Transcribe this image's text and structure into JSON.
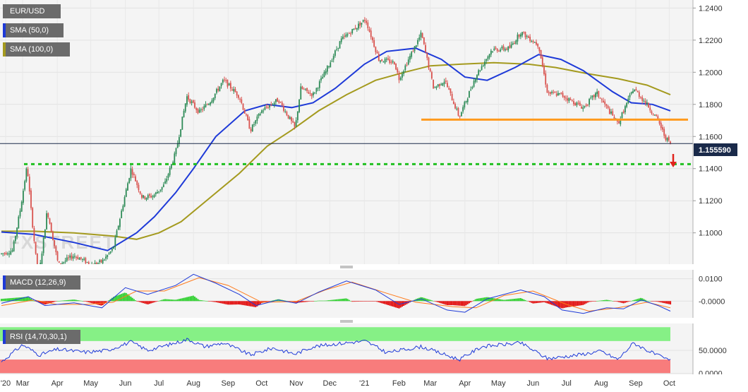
{
  "symbol": "EUR/USD",
  "legends": {
    "sma50": "SMA (50,0)",
    "sma100": "SMA (100,0)",
    "macd": "MACD (12,26,9)",
    "rsi": "RSI (14,70,30,1)"
  },
  "watermark": "FXSTREET",
  "last_price_label": "1.155590",
  "colors": {
    "up": "#2e8b57",
    "down": "#d9534f",
    "sma50": "#1e3ad8",
    "sma100": "#a49a1e",
    "support": "#ff9a1e",
    "target": "#22c022",
    "arrow": "#e0231c",
    "macd_line": "#1e3ad8",
    "signal_line": "#ff7a1a",
    "hist_pos": "#3bd23b",
    "hist_neg": "#e31b1b",
    "rsi_line": "#1e3ad8",
    "overbought": "#86f086",
    "oversold": "#f87c7c"
  },
  "chart_data": [
    {
      "type": "candlestick",
      "title": "EUR/USD",
      "x_ticks": [
        "'20",
        "Mar",
        "Apr",
        "May",
        "Jun",
        "Jul",
        "Aug",
        "Sep",
        "Oct",
        "Nov",
        "Dec",
        "'21",
        "Feb",
        "Mar",
        "Apr",
        "May",
        "Jun",
        "Jul",
        "Aug",
        "Sep",
        "Oct"
      ],
      "y_ticks": [
        "1.1000",
        "1.1200",
        "1.1400",
        "1.1600",
        "1.1800",
        "1.2000",
        "1.2200",
        "1.2400"
      ],
      "ylim": [
        1.0805,
        1.245
      ],
      "last_price": 1.15559,
      "horizontal_support": 1.1705,
      "target_level": 1.1428,
      "close_series": [
        {
          "x": "2020-02-15",
          "y": 1.087
        },
        {
          "x": "2020-02-25",
          "y": 1.089
        },
        {
          "x": "2020-03-03",
          "y": 1.115
        },
        {
          "x": "2020-03-09",
          "y": 1.142
        },
        {
          "x": "2020-03-12",
          "y": 1.118
        },
        {
          "x": "2020-03-19",
          "y": 1.07
        },
        {
          "x": "2020-03-27",
          "y": 1.114
        },
        {
          "x": "2020-04-06",
          "y": 1.08
        },
        {
          "x": "2020-04-20",
          "y": 1.086
        },
        {
          "x": "2020-05-06",
          "y": 1.08
        },
        {
          "x": "2020-05-15",
          "y": 1.082
        },
        {
          "x": "2020-05-25",
          "y": 1.09
        },
        {
          "x": "2020-06-10",
          "y": 1.14
        },
        {
          "x": "2020-06-20",
          "y": 1.122
        },
        {
          "x": "2020-06-30",
          "y": 1.123
        },
        {
          "x": "2020-07-10",
          "y": 1.13
        },
        {
          "x": "2020-07-20",
          "y": 1.15
        },
        {
          "x": "2020-07-30",
          "y": 1.185
        },
        {
          "x": "2020-08-10",
          "y": 1.175
        },
        {
          "x": "2020-08-20",
          "y": 1.182
        },
        {
          "x": "2020-09-01",
          "y": 1.195
        },
        {
          "x": "2020-09-15",
          "y": 1.185
        },
        {
          "x": "2020-09-25",
          "y": 1.164
        },
        {
          "x": "2020-10-05",
          "y": 1.176
        },
        {
          "x": "2020-10-20",
          "y": 1.183
        },
        {
          "x": "2020-11-04",
          "y": 1.165
        },
        {
          "x": "2020-11-09",
          "y": 1.19
        },
        {
          "x": "2020-11-20",
          "y": 1.186
        },
        {
          "x": "2020-12-01",
          "y": 1.2
        },
        {
          "x": "2020-12-15",
          "y": 1.22
        },
        {
          "x": "2021-01-06",
          "y": 1.233
        },
        {
          "x": "2021-01-18",
          "y": 1.208
        },
        {
          "x": "2021-02-01",
          "y": 1.206
        },
        {
          "x": "2021-02-05",
          "y": 1.196
        },
        {
          "x": "2021-02-25",
          "y": 1.224
        },
        {
          "x": "2021-03-08",
          "y": 1.19
        },
        {
          "x": "2021-03-18",
          "y": 1.195
        },
        {
          "x": "2021-03-31",
          "y": 1.172
        },
        {
          "x": "2021-04-15",
          "y": 1.198
        },
        {
          "x": "2021-04-29",
          "y": 1.214
        },
        {
          "x": "2021-05-15",
          "y": 1.215
        },
        {
          "x": "2021-05-25",
          "y": 1.225
        },
        {
          "x": "2021-06-10",
          "y": 1.217
        },
        {
          "x": "2021-06-18",
          "y": 1.187
        },
        {
          "x": "2021-06-30",
          "y": 1.186
        },
        {
          "x": "2021-07-20",
          "y": 1.178
        },
        {
          "x": "2021-08-01",
          "y": 1.187
        },
        {
          "x": "2021-08-20",
          "y": 1.168
        },
        {
          "x": "2021-09-03",
          "y": 1.19
        },
        {
          "x": "2021-09-15",
          "y": 1.18
        },
        {
          "x": "2021-09-25",
          "y": 1.17
        },
        {
          "x": "2021-10-01",
          "y": 1.16
        },
        {
          "x": "2021-10-06",
          "y": 1.1556
        }
      ],
      "series": [
        {
          "name": "SMA (50,0)",
          "points": [
            {
              "x": "2020-02-15",
              "y": 1.1005
            },
            {
              "x": "2020-03-15",
              "y": 1.099
            },
            {
              "x": "2020-04-20",
              "y": 1.094
            },
            {
              "x": "2020-05-20",
              "y": 1.089
            },
            {
              "x": "2020-06-15",
              "y": 1.1
            },
            {
              "x": "2020-07-01",
              "y": 1.11
            },
            {
              "x": "2020-07-20",
              "y": 1.125
            },
            {
              "x": "2020-08-05",
              "y": 1.14
            },
            {
              "x": "2020-08-25",
              "y": 1.16
            },
            {
              "x": "2020-09-20",
              "y": 1.176
            },
            {
              "x": "2020-10-10",
              "y": 1.18
            },
            {
              "x": "2020-11-01",
              "y": 1.178
            },
            {
              "x": "2020-11-20",
              "y": 1.181
            },
            {
              "x": "2020-12-10",
              "y": 1.19
            },
            {
              "x": "2021-01-05",
              "y": 1.205
            },
            {
              "x": "2021-01-25",
              "y": 1.213
            },
            {
              "x": "2021-02-20",
              "y": 1.215
            },
            {
              "x": "2021-03-15",
              "y": 1.208
            },
            {
              "x": "2021-04-05",
              "y": 1.197
            },
            {
              "x": "2021-04-25",
              "y": 1.195
            },
            {
              "x": "2021-05-20",
              "y": 1.203
            },
            {
              "x": "2021-06-10",
              "y": 1.211
            },
            {
              "x": "2021-06-30",
              "y": 1.208
            },
            {
              "x": "2021-07-20",
              "y": 1.201
            },
            {
              "x": "2021-08-15",
              "y": 1.188
            },
            {
              "x": "2021-09-01",
              "y": 1.181
            },
            {
              "x": "2021-09-20",
              "y": 1.18
            },
            {
              "x": "2021-10-06",
              "y": 1.176
            }
          ]
        },
        {
          "name": "SMA (100,0)",
          "points": [
            {
              "x": "2020-02-15",
              "y": 1.101
            },
            {
              "x": "2020-03-15",
              "y": 1.101
            },
            {
              "x": "2020-04-20",
              "y": 1.1
            },
            {
              "x": "2020-05-25",
              "y": 1.098
            },
            {
              "x": "2020-06-15",
              "y": 1.096
            },
            {
              "x": "2020-07-05",
              "y": 1.1
            },
            {
              "x": "2020-07-25",
              "y": 1.107
            },
            {
              "x": "2020-08-20",
              "y": 1.122
            },
            {
              "x": "2020-09-15",
              "y": 1.137
            },
            {
              "x": "2020-10-10",
              "y": 1.154
            },
            {
              "x": "2020-11-01",
              "y": 1.164
            },
            {
              "x": "2020-11-25",
              "y": 1.176
            },
            {
              "x": "2020-12-20",
              "y": 1.186
            },
            {
              "x": "2021-01-15",
              "y": 1.195
            },
            {
              "x": "2021-02-10",
              "y": 1.2
            },
            {
              "x": "2021-03-05",
              "y": 1.204
            },
            {
              "x": "2021-04-01",
              "y": 1.205
            },
            {
              "x": "2021-05-01",
              "y": 1.206
            },
            {
              "x": "2021-06-01",
              "y": 1.205
            },
            {
              "x": "2021-06-25",
              "y": 1.203
            },
            {
              "x": "2021-07-25",
              "y": 1.199
            },
            {
              "x": "2021-08-20",
              "y": 1.196
            },
            {
              "x": "2021-09-15",
              "y": 1.192
            },
            {
              "x": "2021-10-06",
              "y": 1.186
            }
          ]
        }
      ]
    },
    {
      "type": "line",
      "title": "MACD (12,26,9)",
      "y_ticks": [
        "0.0100",
        "-0.0000"
      ],
      "ylim": [
        -0.0075,
        0.014
      ],
      "series": [
        {
          "name": "MACD",
          "points": [
            {
              "x": "2020-02-15",
              "y": -0.001
            },
            {
              "x": "2020-03-10",
              "y": 0.002
            },
            {
              "x": "2020-03-25",
              "y": -0.002
            },
            {
              "x": "2020-04-20",
              "y": -0.0008
            },
            {
              "x": "2020-05-15",
              "y": -0.003
            },
            {
              "x": "2020-06-05",
              "y": 0.006
            },
            {
              "x": "2020-06-25",
              "y": 0.003
            },
            {
              "x": "2020-07-20",
              "y": 0.007
            },
            {
              "x": "2020-08-05",
              "y": 0.012
            },
            {
              "x": "2020-08-25",
              "y": 0.008
            },
            {
              "x": "2020-09-15",
              "y": 0.003
            },
            {
              "x": "2020-09-30",
              "y": -0.002
            },
            {
              "x": "2020-10-20",
              "y": 0.0005
            },
            {
              "x": "2020-11-05",
              "y": -0.001
            },
            {
              "x": "2020-11-25",
              "y": 0.004
            },
            {
              "x": "2020-12-20",
              "y": 0.009
            },
            {
              "x": "2021-01-15",
              "y": 0.005
            },
            {
              "x": "2021-02-05",
              "y": -0.0015
            },
            {
              "x": "2021-02-25",
              "y": 0.001
            },
            {
              "x": "2021-03-20",
              "y": -0.004
            },
            {
              "x": "2021-04-05",
              "y": -0.005
            },
            {
              "x": "2021-04-25",
              "y": 0.001
            },
            {
              "x": "2021-05-25",
              "y": 0.005
            },
            {
              "x": "2021-06-15",
              "y": 0.002
            },
            {
              "x": "2021-07-01",
              "y": -0.004
            },
            {
              "x": "2021-07-20",
              "y": -0.0055
            },
            {
              "x": "2021-08-10",
              "y": -0.003
            },
            {
              "x": "2021-08-25",
              "y": -0.0035
            },
            {
              "x": "2021-09-10",
              "y": 0.0005
            },
            {
              "x": "2021-09-25",
              "y": -0.002
            },
            {
              "x": "2021-10-06",
              "y": -0.0045
            }
          ]
        },
        {
          "name": "Signal",
          "points": [
            {
              "x": "2020-02-15",
              "y": -0.002
            },
            {
              "x": "2020-03-15",
              "y": 0.0005
            },
            {
              "x": "2020-04-05",
              "y": -0.0015
            },
            {
              "x": "2020-05-01",
              "y": -0.0015
            },
            {
              "x": "2020-05-25",
              "y": -0.0005
            },
            {
              "x": "2020-06-15",
              "y": 0.0045
            },
            {
              "x": "2020-07-10",
              "y": 0.0045
            },
            {
              "x": "2020-08-10",
              "y": 0.0105
            },
            {
              "x": "2020-09-05",
              "y": 0.007
            },
            {
              "x": "2020-10-05",
              "y": -0.0005
            },
            {
              "x": "2020-11-05",
              "y": -0.0002
            },
            {
              "x": "2020-12-01",
              "y": 0.005
            },
            {
              "x": "2020-12-25",
              "y": 0.0085
            },
            {
              "x": "2021-01-25",
              "y": 0.0035
            },
            {
              "x": "2021-02-20",
              "y": -0.0005
            },
            {
              "x": "2021-03-25",
              "y": -0.0025
            },
            {
              "x": "2021-04-15",
              "y": -0.003
            },
            {
              "x": "2021-05-10",
              "y": 0.0025
            },
            {
              "x": "2021-06-05",
              "y": 0.0045
            },
            {
              "x": "2021-07-05",
              "y": -0.0015
            },
            {
              "x": "2021-07-25",
              "y": -0.0045
            },
            {
              "x": "2021-08-20",
              "y": -0.003
            },
            {
              "x": "2021-09-15",
              "y": -0.0005
            },
            {
              "x": "2021-10-06",
              "y": -0.003
            }
          ]
        }
      ]
    },
    {
      "type": "line",
      "title": "RSI (14,70,30,1)",
      "y_ticks": [
        "50.0000",
        "0.0000"
      ],
      "ylim": [
        -2,
        108
      ],
      "overbought": 70,
      "oversold": 30,
      "series": [
        {
          "name": "RSI",
          "points": [
            {
              "x": "2020-02-15",
              "y": 25
            },
            {
              "x": "2020-03-05",
              "y": 62
            },
            {
              "x": "2020-03-20",
              "y": 40
            },
            {
              "x": "2020-04-05",
              "y": 52
            },
            {
              "x": "2020-05-01",
              "y": 46
            },
            {
              "x": "2020-05-20",
              "y": 50
            },
            {
              "x": "2020-06-10",
              "y": 68
            },
            {
              "x": "2020-06-25",
              "y": 50
            },
            {
              "x": "2020-07-20",
              "y": 66
            },
            {
              "x": "2020-07-31",
              "y": 74
            },
            {
              "x": "2020-08-15",
              "y": 58
            },
            {
              "x": "2020-09-01",
              "y": 66
            },
            {
              "x": "2020-09-25",
              "y": 40
            },
            {
              "x": "2020-10-15",
              "y": 55
            },
            {
              "x": "2020-11-04",
              "y": 42
            },
            {
              "x": "2020-11-20",
              "y": 58
            },
            {
              "x": "2020-12-15",
              "y": 65
            },
            {
              "x": "2021-01-06",
              "y": 70
            },
            {
              "x": "2021-01-25",
              "y": 45
            },
            {
              "x": "2021-02-25",
              "y": 58
            },
            {
              "x": "2021-03-31",
              "y": 30
            },
            {
              "x": "2021-04-20",
              "y": 58
            },
            {
              "x": "2021-05-25",
              "y": 66
            },
            {
              "x": "2021-06-18",
              "y": 32
            },
            {
              "x": "2021-07-15",
              "y": 40
            },
            {
              "x": "2021-08-05",
              "y": 48
            },
            {
              "x": "2021-08-20",
              "y": 30
            },
            {
              "x": "2021-09-03",
              "y": 66
            },
            {
              "x": "2021-09-20",
              "y": 44
            },
            {
              "x": "2021-10-01",
              "y": 32
            },
            {
              "x": "2021-10-06",
              "y": 28
            }
          ]
        }
      ]
    }
  ]
}
